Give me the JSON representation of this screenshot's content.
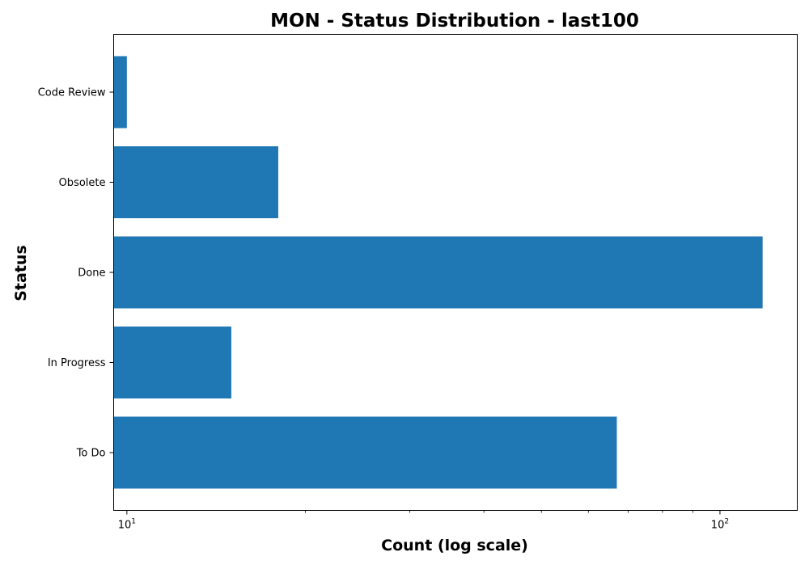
{
  "chart_data": {
    "type": "bar",
    "orientation": "horizontal",
    "title": "MON - Status Distribution - last100",
    "xlabel": "Count (log scale)",
    "ylabel": "Status",
    "xscale": "log",
    "xlim": [
      9.5,
      135
    ],
    "x_ticks": [
      {
        "value": 10,
        "base": "10",
        "exp": "1"
      },
      {
        "value": 100,
        "base": "10",
        "exp": "2"
      }
    ],
    "categories": [
      "To Do",
      "In Progress",
      "Done",
      "Obsolete",
      "Code Review"
    ],
    "values": [
      67,
      15,
      118,
      18,
      10
    ],
    "bar_color": "#1f77b4",
    "grid": false,
    "legend": "none"
  }
}
